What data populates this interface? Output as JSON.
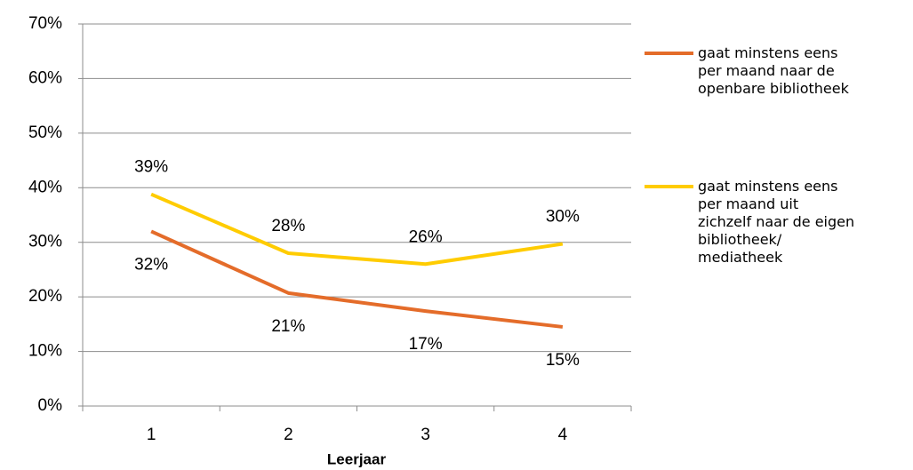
{
  "chart_data": {
    "type": "line",
    "x_label": "Leerjaar",
    "categories": [
      "1",
      "2",
      "3",
      "4"
    ],
    "series": [
      {
        "name": "gaat minstens eens\nper maand naar de\nopenbare bibliotheek",
        "color": "#e46c2a",
        "values": [
          32,
          20.7,
          17.4,
          14.5
        ],
        "value_labels": [
          "32%",
          "21%",
          "17%",
          "15%"
        ]
      },
      {
        "name": "gaat minstens eens\nper maand uit\nzichzelf naar de eigen\nbibliotheek/\nmediatheek",
        "color": "#ffcc00",
        "values": [
          38.8,
          28,
          26,
          29.7
        ],
        "value_labels": [
          "39%",
          "28%",
          "26%",
          "30%"
        ]
      }
    ],
    "ylim": [
      0,
      70
    ],
    "yticks": [
      {
        "value": 0,
        "label": "0%"
      },
      {
        "value": 10,
        "label": "10%"
      },
      {
        "value": 20,
        "label": "20%"
      },
      {
        "value": 30,
        "label": "30%"
      },
      {
        "value": 40,
        "label": "40%"
      },
      {
        "value": 50,
        "label": "50%"
      },
      {
        "value": 60,
        "label": "60%"
      },
      {
        "value": 70,
        "label": "70%"
      }
    ],
    "grid": true,
    "legend": "right"
  }
}
